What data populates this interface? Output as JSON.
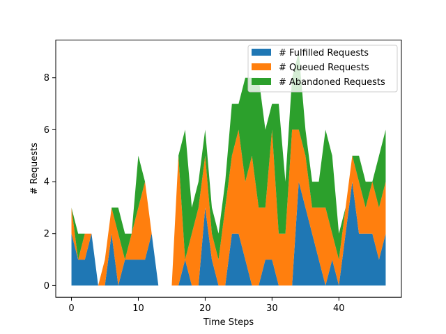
{
  "chart_data": {
    "type": "area",
    "stacked": true,
    "title": "",
    "xlabel": "Time Steps",
    "ylabel": "# Requests",
    "xlim": [
      -2.35,
      49.35
    ],
    "ylim": [
      -0.45,
      9.45
    ],
    "xticks": [
      0,
      10,
      20,
      30,
      40
    ],
    "yticks": [
      0,
      2,
      4,
      6,
      8
    ],
    "legend_position": "top-right",
    "x": [
      0,
      1,
      2,
      3,
      4,
      5,
      6,
      7,
      8,
      9,
      10,
      11,
      12,
      13,
      14,
      15,
      16,
      17,
      18,
      19,
      20,
      21,
      22,
      23,
      24,
      25,
      26,
      27,
      28,
      29,
      30,
      31,
      32,
      33,
      34,
      35,
      36,
      37,
      38,
      39,
      40,
      41,
      42,
      43,
      44,
      45,
      46,
      47
    ],
    "series": [
      {
        "name": "# Fulfilled Requests",
        "color": "#1f77b4",
        "values": [
          2,
          1,
          1,
          2,
          0,
          0,
          2,
          0,
          1,
          1,
          1,
          1,
          2,
          0,
          0,
          0,
          0,
          1,
          0,
          0,
          3,
          1,
          0,
          0,
          2,
          2,
          1,
          0,
          0,
          1,
          1,
          0,
          0,
          0,
          4,
          3,
          2,
          1,
          0,
          1,
          0,
          2,
          4,
          2,
          2,
          2,
          1,
          2
        ]
      },
      {
        "name": "# Queued Requests",
        "color": "#ff7f0e",
        "values": [
          1,
          0,
          1,
          0,
          0,
          1,
          1,
          2,
          0,
          1,
          2,
          3,
          0,
          0,
          0,
          0,
          5,
          0,
          2,
          3,
          2,
          1,
          1,
          3,
          3,
          4,
          3,
          5,
          3,
          2,
          5,
          2,
          2,
          6,
          2,
          2,
          1,
          2,
          3,
          1,
          1,
          1,
          1,
          2,
          1,
          2,
          2,
          2
        ]
      },
      {
        "name": "# Abandoned Requests",
        "color": "#2ca02c",
        "values": [
          0,
          1,
          0,
          0,
          0,
          0,
          0,
          1,
          1,
          0,
          2,
          0,
          0,
          0,
          0,
          0,
          0,
          5,
          1,
          1,
          1,
          1,
          1,
          1,
          2,
          1,
          4,
          3,
          5,
          3,
          1,
          5,
          2,
          2,
          3,
          1,
          1,
          1,
          3,
          3,
          1,
          0,
          0,
          1,
          1,
          0,
          2,
          2
        ]
      }
    ]
  }
}
